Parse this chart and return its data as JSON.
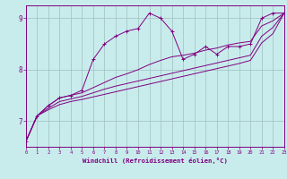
{
  "xlabel": "Windchill (Refroidissement éolien,°C)",
  "bg_color": "#c8ecec",
  "line_color": "#800080",
  "grid_color": "#a0bfbf",
  "axis_color": "#800080",
  "spine_color": "#800080",
  "xlim": [
    0,
    23
  ],
  "ylim": [
    6.5,
    9.25
  ],
  "xticks": [
    0,
    1,
    2,
    3,
    4,
    5,
    6,
    7,
    8,
    9,
    10,
    11,
    12,
    13,
    14,
    15,
    16,
    17,
    18,
    19,
    20,
    21,
    22,
    23
  ],
  "yticks": [
    7,
    8,
    9
  ],
  "series1": [
    [
      0,
      6.6
    ],
    [
      1,
      7.1
    ],
    [
      2,
      7.3
    ],
    [
      3,
      7.45
    ],
    [
      4,
      7.5
    ],
    [
      5,
      7.6
    ],
    [
      6,
      8.2
    ],
    [
      7,
      8.5
    ],
    [
      8,
      8.65
    ],
    [
      9,
      8.75
    ],
    [
      10,
      8.8
    ],
    [
      11,
      9.1
    ],
    [
      12,
      9.0
    ],
    [
      13,
      8.75
    ],
    [
      14,
      8.2
    ],
    [
      15,
      8.3
    ],
    [
      16,
      8.45
    ],
    [
      17,
      8.3
    ],
    [
      18,
      8.45
    ],
    [
      19,
      8.45
    ],
    [
      20,
      8.5
    ],
    [
      21,
      9.0
    ],
    [
      22,
      9.1
    ],
    [
      23,
      9.1
    ]
  ],
  "series2": [
    [
      0,
      6.6
    ],
    [
      1,
      7.1
    ],
    [
      2,
      7.3
    ],
    [
      3,
      7.45
    ],
    [
      4,
      7.5
    ],
    [
      5,
      7.55
    ],
    [
      6,
      7.65
    ],
    [
      7,
      7.75
    ],
    [
      8,
      7.85
    ],
    [
      9,
      7.92
    ],
    [
      10,
      8.0
    ],
    [
      11,
      8.1
    ],
    [
      12,
      8.18
    ],
    [
      13,
      8.25
    ],
    [
      14,
      8.28
    ],
    [
      15,
      8.32
    ],
    [
      16,
      8.38
    ],
    [
      17,
      8.42
    ],
    [
      18,
      8.48
    ],
    [
      19,
      8.52
    ],
    [
      20,
      8.55
    ],
    [
      21,
      8.85
    ],
    [
      22,
      8.95
    ],
    [
      23,
      9.1
    ]
  ],
  "series3": [
    [
      0,
      6.6
    ],
    [
      1,
      7.1
    ],
    [
      2,
      7.25
    ],
    [
      3,
      7.38
    ],
    [
      4,
      7.43
    ],
    [
      5,
      7.48
    ],
    [
      6,
      7.55
    ],
    [
      7,
      7.62
    ],
    [
      8,
      7.68
    ],
    [
      9,
      7.73
    ],
    [
      10,
      7.78
    ],
    [
      11,
      7.83
    ],
    [
      12,
      7.88
    ],
    [
      13,
      7.93
    ],
    [
      14,
      7.98
    ],
    [
      15,
      8.03
    ],
    [
      16,
      8.08
    ],
    [
      17,
      8.13
    ],
    [
      18,
      8.18
    ],
    [
      19,
      8.23
    ],
    [
      20,
      8.28
    ],
    [
      21,
      8.65
    ],
    [
      22,
      8.82
    ],
    [
      23,
      9.1
    ]
  ],
  "series4": [
    [
      0,
      6.6
    ],
    [
      1,
      7.1
    ],
    [
      2,
      7.22
    ],
    [
      3,
      7.32
    ],
    [
      4,
      7.38
    ],
    [
      5,
      7.42
    ],
    [
      6,
      7.47
    ],
    [
      7,
      7.52
    ],
    [
      8,
      7.57
    ],
    [
      9,
      7.62
    ],
    [
      10,
      7.67
    ],
    [
      11,
      7.72
    ],
    [
      12,
      7.77
    ],
    [
      13,
      7.82
    ],
    [
      14,
      7.87
    ],
    [
      15,
      7.92
    ],
    [
      16,
      7.97
    ],
    [
      17,
      8.02
    ],
    [
      18,
      8.07
    ],
    [
      19,
      8.12
    ],
    [
      20,
      8.18
    ],
    [
      21,
      8.52
    ],
    [
      22,
      8.7
    ],
    [
      23,
      9.1
    ]
  ]
}
